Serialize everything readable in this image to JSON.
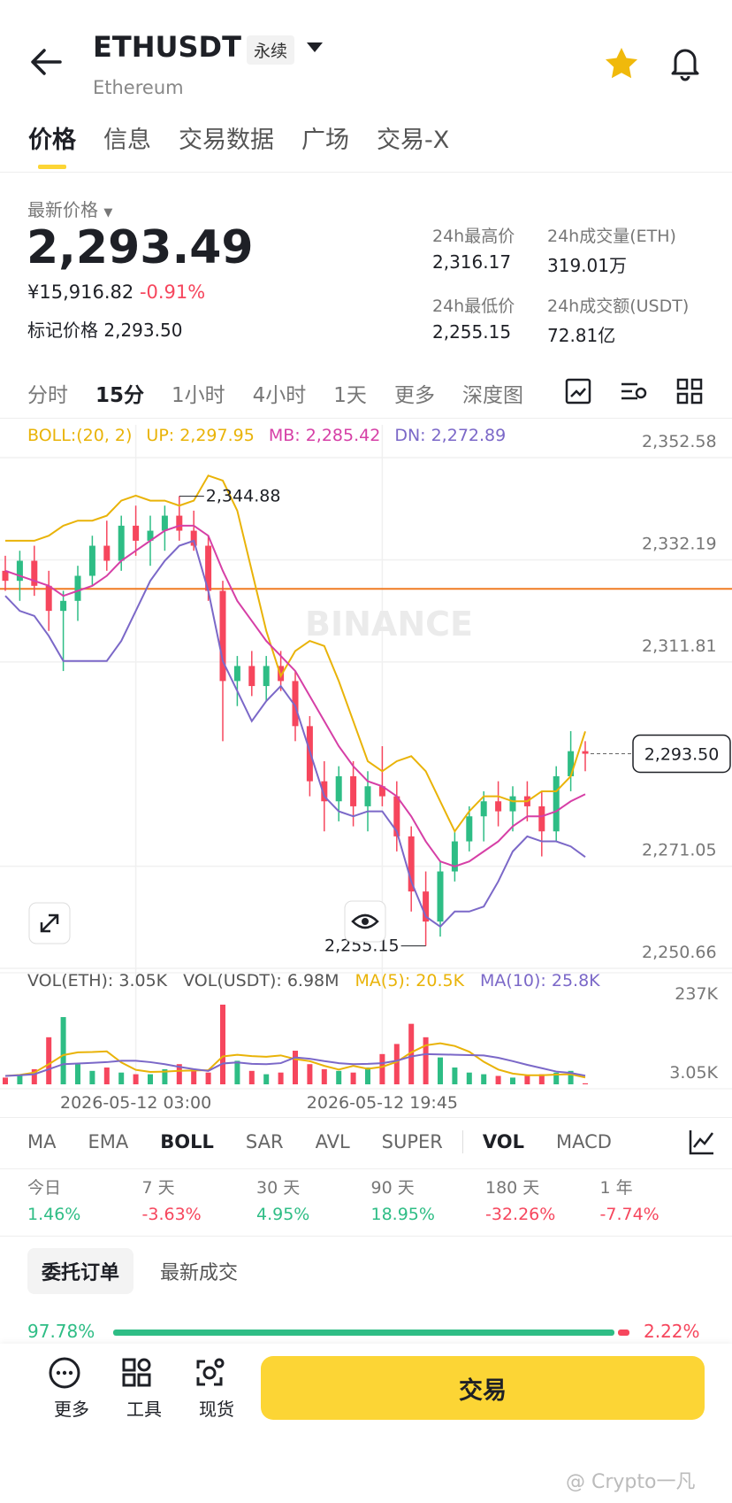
{
  "header": {
    "symbol": "ETHUSDT",
    "badge": "永续",
    "subtitle": "Ethereum"
  },
  "tabs": {
    "items": [
      "价格",
      "信息",
      "交易数据",
      "广场",
      "交易-X"
    ],
    "selected": 0
  },
  "price": {
    "label": "最新价格",
    "last": "2,293.49",
    "cny": "¥15,916.82",
    "change": "-0.91%",
    "mark_label": "标记价格",
    "mark": "2,293.50"
  },
  "stats": [
    {
      "label": "24h最高价",
      "value": "2,316.17"
    },
    {
      "label": "24h成交量(ETH)",
      "value": "319.01万"
    },
    {
      "label": "24h最低价",
      "value": "2,255.15"
    },
    {
      "label": "24h成交额(USDT)",
      "value": "72.81亿"
    }
  ],
  "intervals": {
    "items": [
      "分时",
      "15分",
      "1小时",
      "4小时",
      "1天",
      "更多",
      "深度图"
    ],
    "selected": 1
  },
  "chart_data": {
    "type": "candlestick",
    "categories": [
      null,
      null,
      null,
      null,
      null,
      null,
      null,
      null,
      null,
      "2026-05-12 03:00",
      null,
      null,
      null,
      null,
      null,
      null,
      null,
      null,
      null,
      null,
      null,
      null,
      null,
      null,
      null,
      null,
      "2026-05-12 19:45",
      null,
      null,
      null,
      null,
      null,
      null,
      null,
      null,
      null,
      null,
      null,
      null,
      null,
      null
    ],
    "ohlc": [
      [
        2330,
        2333,
        2326,
        2328
      ],
      [
        2328,
        2334,
        2324,
        2332
      ],
      [
        2332,
        2335,
        2325,
        2327
      ],
      [
        2327,
        2330,
        2318,
        2322
      ],
      [
        2322,
        2326,
        2310,
        2324
      ],
      [
        2324,
        2331,
        2320,
        2329
      ],
      [
        2329,
        2337,
        2327,
        2335
      ],
      [
        2335,
        2340,
        2330,
        2332
      ],
      [
        2332,
        2341,
        2330,
        2339
      ],
      [
        2339,
        2343,
        2333,
        2336
      ],
      [
        2336,
        2341,
        2331,
        2338
      ],
      [
        2338,
        2343,
        2334,
        2341
      ],
      [
        2341,
        2344.88,
        2336,
        2338
      ],
      [
        2338,
        2342,
        2334,
        2335
      ],
      [
        2335,
        2337,
        2324,
        2326
      ],
      [
        2326,
        2328,
        2296,
        2308
      ],
      [
        2308,
        2313,
        2303,
        2311
      ],
      [
        2311,
        2314,
        2305,
        2307
      ],
      [
        2307,
        2313,
        2304,
        2311
      ],
      [
        2311,
        2314,
        2306,
        2308
      ],
      [
        2308,
        2310,
        2296,
        2299
      ],
      [
        2299,
        2301,
        2285,
        2288
      ],
      [
        2288,
        2292,
        2278,
        2284
      ],
      [
        2284,
        2291,
        2280,
        2289
      ],
      [
        2289,
        2292,
        2279,
        2283
      ],
      [
        2283,
        2290,
        2278,
        2287
      ],
      [
        2287,
        2295,
        2283,
        2285
      ],
      [
        2285,
        2288,
        2274,
        2277
      ],
      [
        2277,
        2279,
        2262,
        2266
      ],
      [
        2266,
        2270,
        2255.15,
        2260
      ],
      [
        2260,
        2272,
        2257,
        2270
      ],
      [
        2270,
        2278,
        2268,
        2276
      ],
      [
        2276,
        2283,
        2274,
        2281
      ],
      [
        2281,
        2286,
        2276,
        2284
      ],
      [
        2284,
        2288,
        2279,
        2282
      ],
      [
        2282,
        2287,
        2278,
        2285
      ],
      [
        2285,
        2288,
        2280,
        2283
      ],
      [
        2283,
        2286,
        2273,
        2278
      ],
      [
        2278,
        2291,
        2276,
        2289
      ],
      [
        2289,
        2298,
        2286,
        2294
      ],
      [
        2294,
        2296,
        2290,
        2293.49
      ]
    ],
    "up_color": "#2ebd85",
    "down_color": "#f6465d",
    "ylim": [
      2250.66,
      2359.12
    ],
    "yticks": [
      {
        "value": 2352.58,
        "label": "2,352.58"
      },
      {
        "value": 2332.19,
        "label": "2,332.19"
      },
      {
        "value": 2311.81,
        "label": "2,311.81"
      },
      {
        "value": 2271.05,
        "label": "2,271.05"
      },
      {
        "value": 2250.66,
        "label": "2,250.66"
      }
    ],
    "grid": true,
    "boll": {
      "label": "BOLL:(20, 2)",
      "up": {
        "label": "UP: 2,297.95",
        "color": "#e9b308",
        "values": [
          2336,
          2336,
          2336,
          2337,
          2339,
          2340,
          2340,
          2341,
          2344,
          2345,
          2344,
          2344,
          2343,
          2344,
          2349,
          2348,
          2342,
          2330,
          2318,
          2309,
          2314,
          2316,
          2315,
          2308,
          2300,
          2292,
          2290,
          2292,
          2293,
          2290,
          2284,
          2278,
          2282,
          2285,
          2285,
          2284,
          2284,
          2286,
          2286,
          2289,
          2297.95
        ]
      },
      "mb": {
        "label": "MB: 2,285.42",
        "color": "#d63fa6",
        "values": [
          2330,
          2329,
          2328,
          2327,
          2325,
          2326,
          2327,
          2329,
          2332,
          2334,
          2336,
          2338,
          2339,
          2339,
          2337,
          2330,
          2324,
          2320,
          2316,
          2313,
          2310,
          2305,
          2300,
          2295,
          2291,
          2288,
          2287,
          2285,
          2281,
          2276,
          2272,
          2271,
          2272,
          2274,
          2276,
          2279,
          2281,
          2281,
          2282,
          2284,
          2285.42
        ]
      },
      "dn": {
        "label": "DN: 2,272.89",
        "color": "#7b68c8",
        "values": [
          2325,
          2322,
          2321,
          2317,
          2312,
          2312,
          2312,
          2312,
          2316,
          2322,
          2328,
          2332,
          2335,
          2336,
          2326,
          2312,
          2306,
          2300,
          2304,
          2307,
          2303,
          2294,
          2285,
          2282,
          2281,
          2282,
          2282,
          2278,
          2268,
          2261,
          2259,
          2262,
          2262,
          2263,
          2268,
          2274,
          2277,
          2276,
          2276,
          2275,
          2272.89
        ]
      }
    },
    "position_line": {
      "value": 2326.4,
      "color": "#f07b22"
    },
    "last_price": {
      "value": 2293.5,
      "label": "2,293.50"
    },
    "high_label": "2,344.88",
    "low_label": "2,255.15",
    "watermark": "BINANCE",
    "volume": {
      "label_eth": "VOL(ETH): 3.05K",
      "label_usdt": "VOL(USDT): 6.98M",
      "values": [
        20,
        30,
        45,
        140,
        200,
        60,
        40,
        50,
        35,
        30,
        30,
        45,
        60,
        40,
        35,
        237,
        70,
        40,
        30,
        35,
        100,
        60,
        45,
        40,
        35,
        50,
        90,
        120,
        180,
        140,
        80,
        50,
        35,
        30,
        25,
        20,
        25,
        30,
        35,
        40,
        3.05
      ],
      "ylim": [
        0,
        263.3
      ],
      "yticks": [
        {
          "value": 237,
          "label": "237K"
        },
        {
          "value": 3.05,
          "label": "3.05K"
        }
      ],
      "ma5": {
        "label": "MA(5): 20.5K",
        "color": "#e9b308",
        "values": [
          25,
          28,
          35,
          60,
          87,
          95,
          96,
          98,
          65,
          43,
          37,
          38,
          40,
          41,
          42,
          83,
          88,
          84,
          82,
          86,
          75,
          69,
          55,
          44,
          55,
          46,
          52,
          67,
          95,
          116,
          122,
          114,
          97,
          67,
          44,
          32,
          27,
          27,
          29,
          30,
          20.5
        ]
      },
      "ma10": {
        "label": "MA(10): 25.8K",
        "color": "#7b68c8",
        "values": [
          25,
          27,
          30,
          45,
          60,
          62,
          64,
          66,
          70,
          70,
          66,
          60,
          52,
          45,
          40,
          62,
          65,
          61,
          60,
          63,
          80,
          76,
          69,
          63,
          60,
          61,
          63,
          70,
          83,
          90,
          89,
          88,
          87,
          86,
          79,
          69,
          58,
          48,
          38,
          34,
          25.8
        ]
      }
    }
  },
  "indicators": {
    "main": [
      "MA",
      "EMA",
      "BOLL",
      "SAR",
      "AVL",
      "SUPER"
    ],
    "main_selected": 2,
    "sub": [
      "VOL",
      "MACD"
    ],
    "sub_selected": 0
  },
  "performance": [
    {
      "label": "今日",
      "value": "1.46%",
      "color": "#2ebd85"
    },
    {
      "label": "7 天",
      "value": "-3.63%",
      "color": "#f6465d"
    },
    {
      "label": "30 天",
      "value": "4.95%",
      "color": "#2ebd85"
    },
    {
      "label": "90 天",
      "value": "18.95%",
      "color": "#2ebd85"
    },
    {
      "label": "180 天",
      "value": "-32.26%",
      "color": "#f6465d"
    },
    {
      "label": "1 年",
      "value": "-7.74%",
      "color": "#f6465d"
    }
  ],
  "orders": {
    "tabs": [
      "委托订单",
      "最新成交"
    ],
    "selected": 0,
    "buy_ratio": {
      "value": 97.78,
      "label": "97.78%"
    },
    "sell_ratio": {
      "value": 2.22,
      "label": "2.22%"
    }
  },
  "bottom_bar": {
    "items": [
      "更多",
      "工具",
      "现货"
    ],
    "trade_button": "交易"
  },
  "watermark": "@ Crypto一凡"
}
